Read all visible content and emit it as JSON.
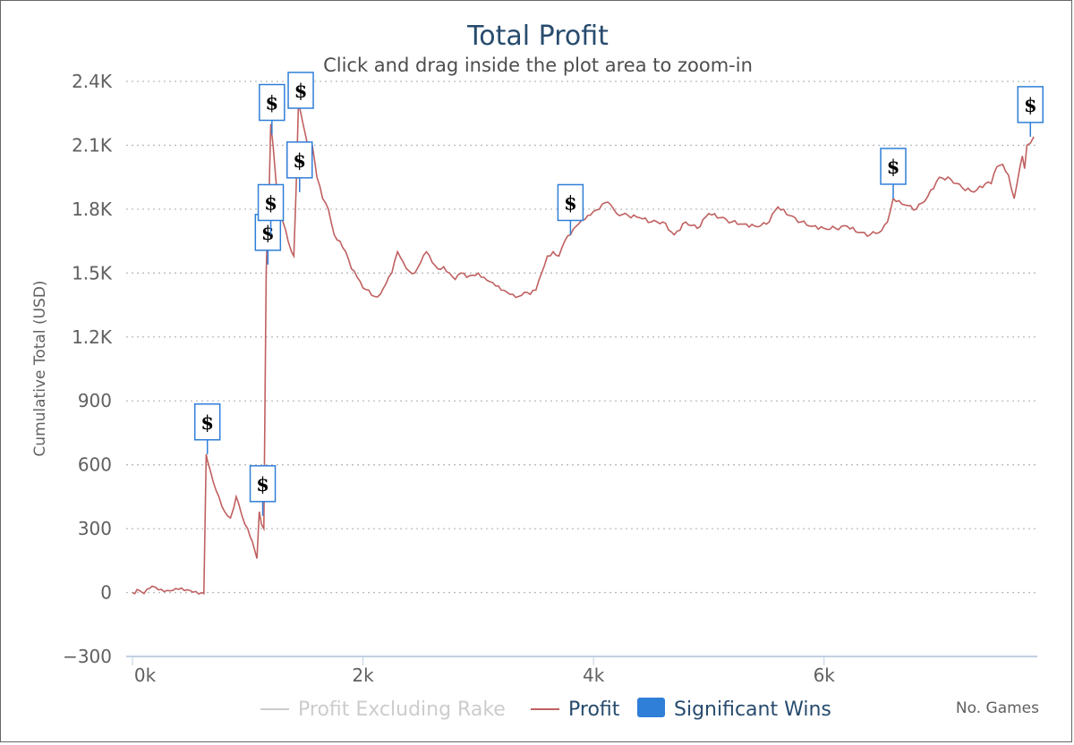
{
  "chart_data": {
    "type": "line",
    "title": "Total Profit",
    "subtitle": "Click and drag inside the plot area to zoom-in",
    "xlabel": "No. Games",
    "ylabel": "Cumulative Total (USD)",
    "xlim": [
      0,
      7850
    ],
    "ylim": [
      -300,
      2400
    ],
    "x_ticks": [
      0,
      2000,
      4000,
      6000
    ],
    "x_tick_labels": [
      "0k",
      "2k",
      "4k",
      "6k"
    ],
    "y_ticks": [
      -300,
      0,
      300,
      600,
      900,
      1200,
      1500,
      1800,
      2100,
      2400
    ],
    "y_tick_labels": [
      "−300",
      "0",
      "300",
      "600",
      "900",
      "1.2K",
      "1.5K",
      "1.8K",
      "2.1K",
      "2.4K"
    ],
    "grid": "horizontal-dotted",
    "legend_placement": "bottom-center",
    "colors": {
      "profit": "#c06060",
      "flag_border": "#2f7ed8",
      "excluded": "#cccccc",
      "title": "#274b6d"
    },
    "series": [
      {
        "name": "Profit Excluding Rake",
        "visible": false,
        "x": [],
        "y": []
      },
      {
        "name": "Profit",
        "visible": true,
        "x": [
          0,
          60,
          100,
          150,
          170,
          200,
          250,
          300,
          350,
          400,
          450,
          500,
          550,
          600,
          620,
          640,
          650,
          700,
          750,
          800,
          850,
          880,
          900,
          920,
          950,
          1000,
          1040,
          1060,
          1080,
          1100,
          1120,
          1140,
          1160,
          1170,
          1180,
          1200,
          1220,
          1250,
          1280,
          1300,
          1330,
          1350,
          1380,
          1400,
          1420,
          1440,
          1450,
          1480,
          1500,
          1520,
          1540,
          1560,
          1600,
          1650,
          1700,
          1750,
          1800,
          1850,
          1900,
          1950,
          2000,
          2050,
          2100,
          2150,
          2200,
          2250,
          2300,
          2350,
          2400,
          2450,
          2500,
          2550,
          2600,
          2650,
          2700,
          2750,
          2800,
          2850,
          2900,
          2950,
          3000,
          3050,
          3100,
          3150,
          3200,
          3250,
          3300,
          3350,
          3400,
          3450,
          3500,
          3550,
          3600,
          3650,
          3700,
          3750,
          3800,
          3850,
          3900,
          3950,
          4000,
          4050,
          4100,
          4150,
          4200,
          4300,
          4400,
          4500,
          4600,
          4700,
          4800,
          4900,
          5000,
          5100,
          5200,
          5300,
          5400,
          5500,
          5600,
          5700,
          5800,
          5900,
          6000,
          6100,
          6200,
          6300,
          6400,
          6500,
          6550,
          6600,
          6650,
          6700,
          6800,
          6900,
          7000,
          7100,
          7200,
          7300,
          7400,
          7450,
          7500,
          7550,
          7600,
          7650,
          7700,
          7720,
          7740,
          7760,
          7790,
          7820
        ],
        "y": [
          0,
          10,
          -5,
          20,
          30,
          25,
          15,
          10,
          10,
          15,
          10,
          10,
          5,
          0,
          -5,
          650,
          620,
          520,
          450,
          380,
          350,
          400,
          450,
          420,
          360,
          300,
          240,
          200,
          160,
          380,
          320,
          300,
          1500,
          1700,
          1750,
          2200,
          2100,
          1900,
          1800,
          1750,
          1700,
          1650,
          1600,
          1580,
          1900,
          2300,
          2280,
          2200,
          2150,
          2100,
          2050,
          2100,
          1950,
          1850,
          1800,
          1680,
          1650,
          1600,
          1520,
          1480,
          1430,
          1420,
          1390,
          1400,
          1450,
          1500,
          1600,
          1550,
          1510,
          1500,
          1550,
          1600,
          1550,
          1520,
          1530,
          1500,
          1470,
          1500,
          1480,
          1490,
          1500,
          1480,
          1460,
          1440,
          1420,
          1410,
          1400,
          1390,
          1410,
          1400,
          1420,
          1500,
          1580,
          1600,
          1580,
          1650,
          1680,
          1720,
          1750,
          1770,
          1790,
          1800,
          1830,
          1820,
          1780,
          1770,
          1760,
          1740,
          1740,
          1680,
          1740,
          1710,
          1780,
          1760,
          1740,
          1730,
          1720,
          1730,
          1810,
          1770,
          1740,
          1720,
          1710,
          1710,
          1720,
          1690,
          1680,
          1700,
          1740,
          1850,
          1840,
          1820,
          1800,
          1860,
          1950,
          1940,
          1900,
          1880,
          1920,
          1920,
          2000,
          2010,
          1960,
          1850,
          2000,
          2050,
          1990,
          2100,
          2110,
          2140
        ]
      },
      {
        "name": "Significant Wins",
        "type": "flags",
        "symbol": "$",
        "x": [
          650,
          1130,
          1175,
          1200,
          1210,
          1450,
          1460,
          3800,
          6600,
          7790
        ],
        "y": [
          650,
          360,
          1540,
          1680,
          2150,
          1880,
          2300,
          1680,
          1850,
          2140
        ]
      }
    ]
  },
  "legend": {
    "items": [
      {
        "label": "Profit Excluding Rake",
        "hidden": true
      },
      {
        "label": "Profit",
        "hidden": false
      },
      {
        "label": "Significant Wins",
        "hidden": false
      }
    ]
  }
}
